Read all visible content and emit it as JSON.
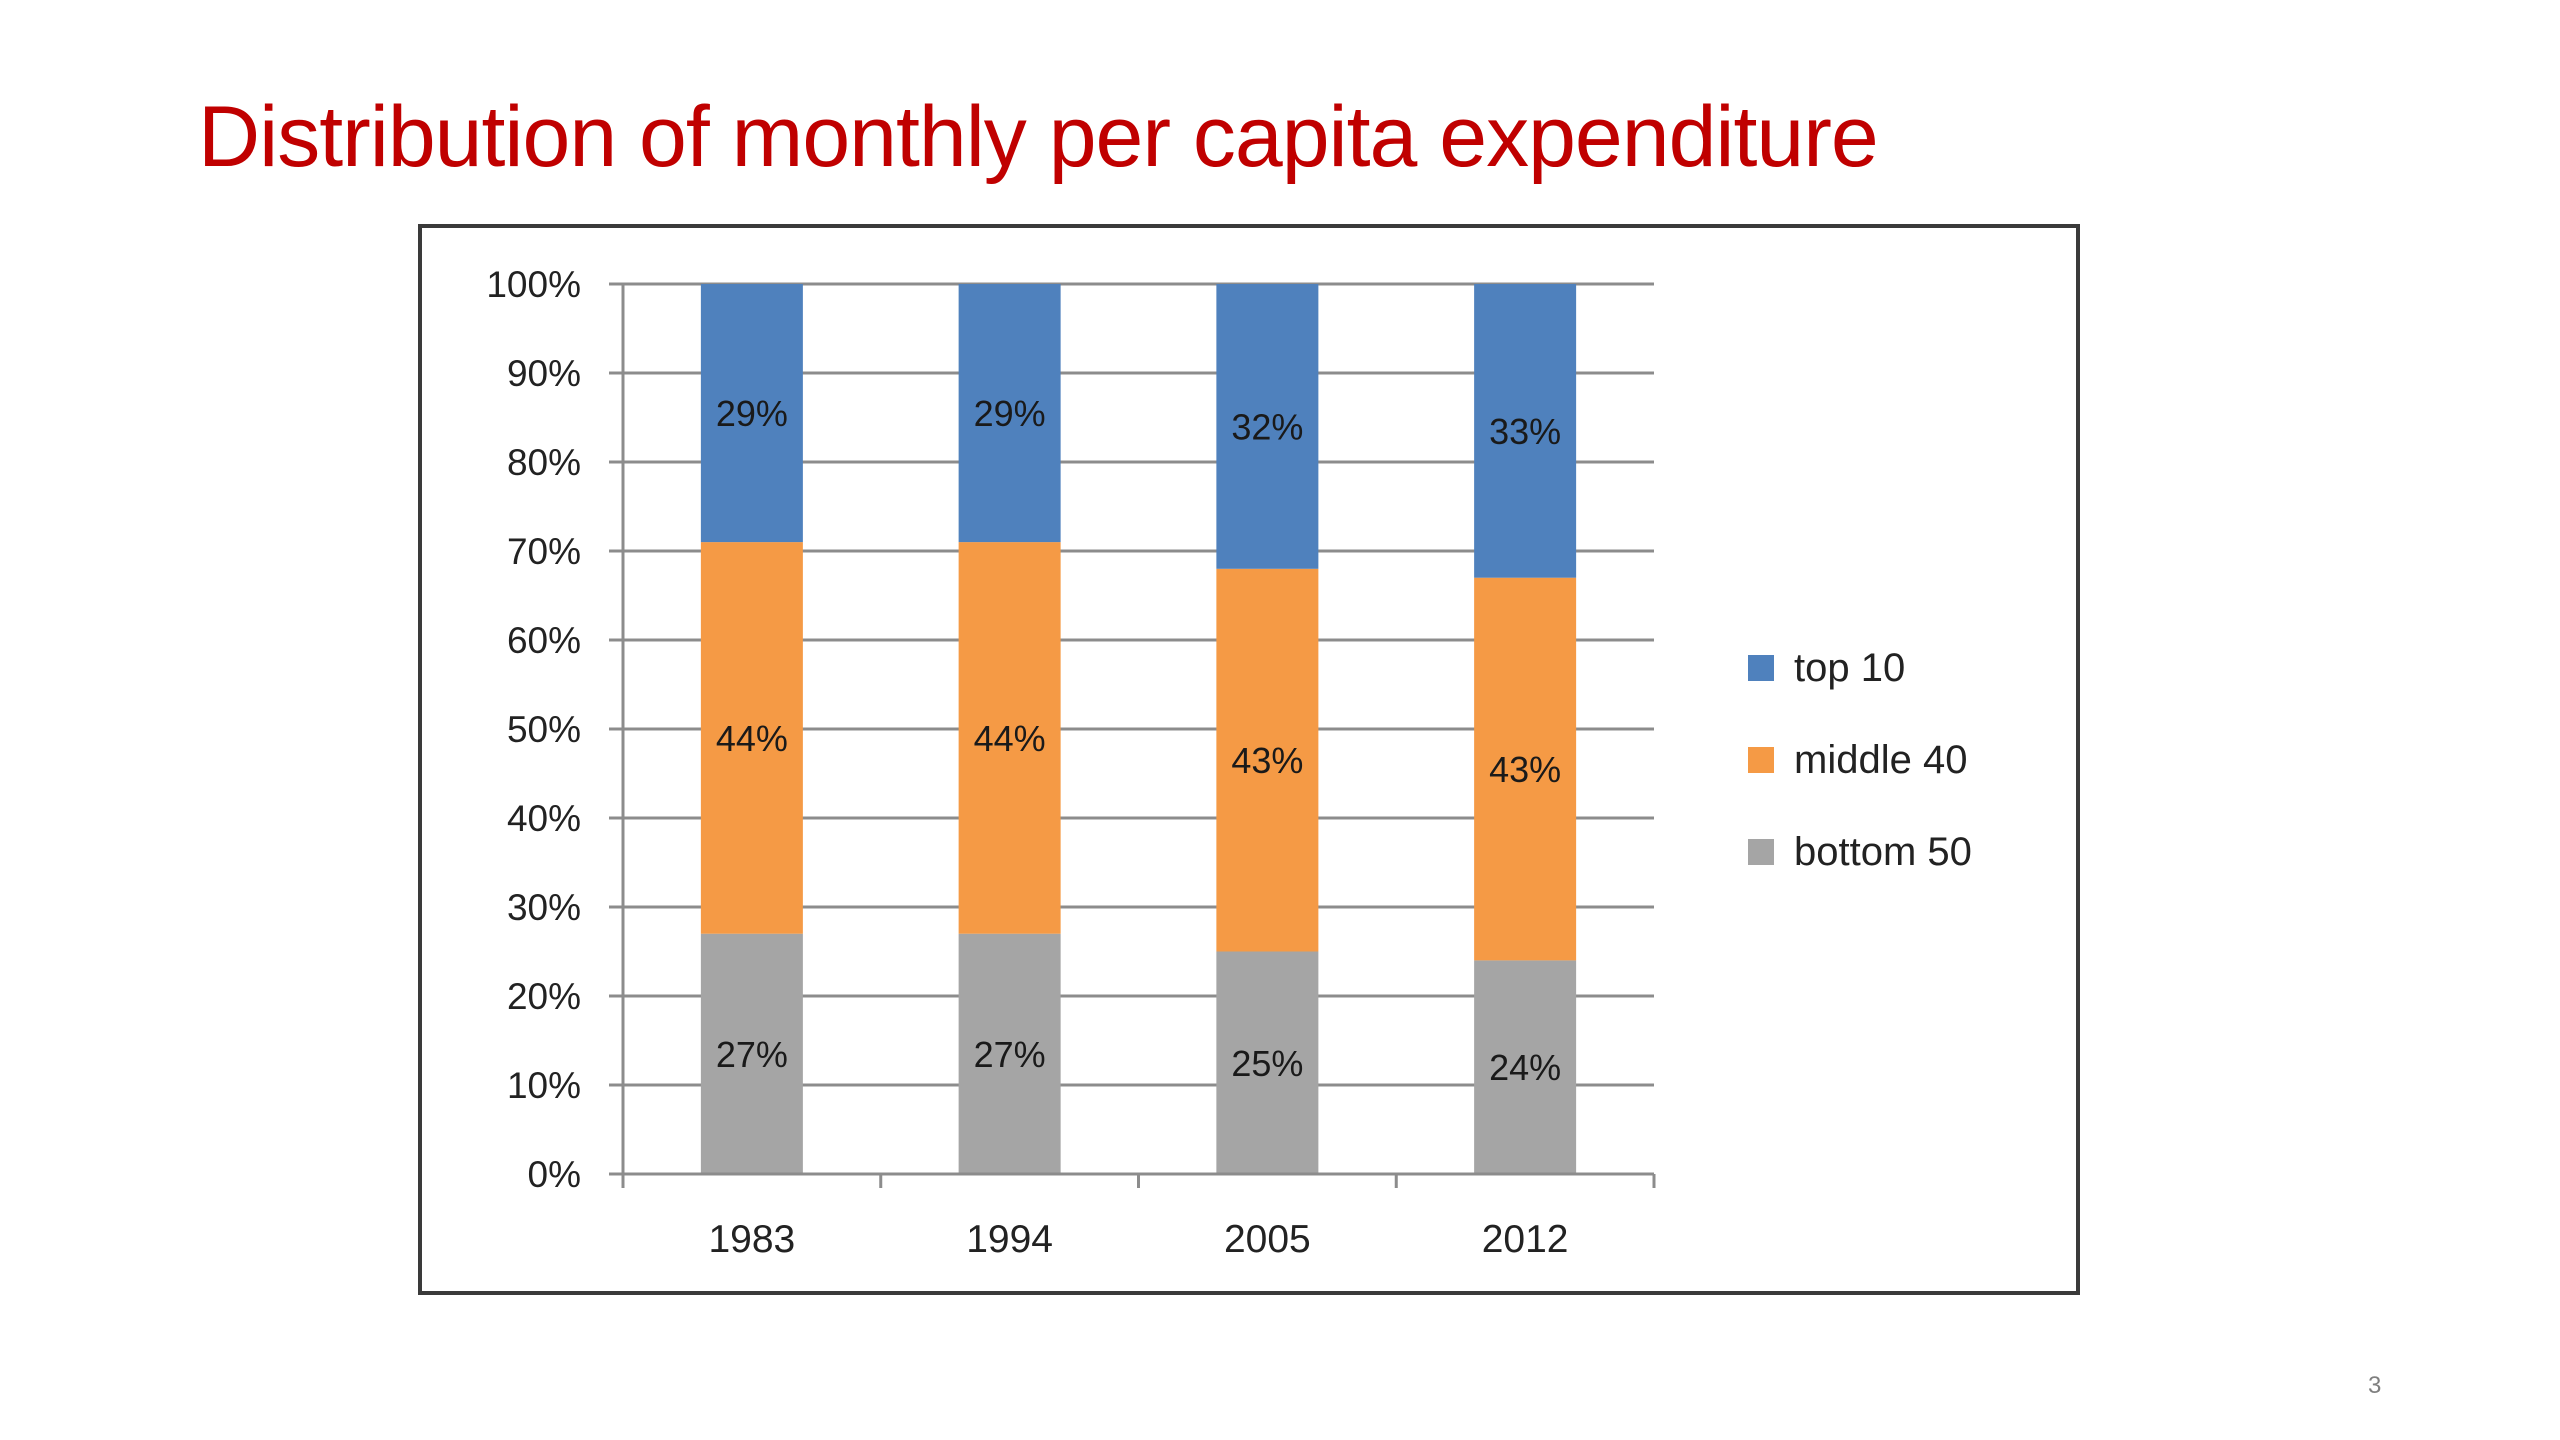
{
  "slide": {
    "title": "Distribution of monthly per capita expenditure",
    "page_number": "3"
  },
  "chart_data": {
    "type": "bar",
    "stacked": true,
    "percent_stacked": true,
    "categories": [
      "1983",
      "1994",
      "2005",
      "2012"
    ],
    "series": [
      {
        "name": "bottom 50",
        "values": [
          27,
          27,
          25,
          24
        ],
        "labels": [
          "27%",
          "27%",
          "25%",
          "24%"
        ],
        "color": "#a5a5a5"
      },
      {
        "name": "middle 40",
        "values": [
          44,
          44,
          43,
          43
        ],
        "labels": [
          "44%",
          "44%",
          "43%",
          "43%"
        ],
        "color": "#f59a45"
      },
      {
        "name": "top 10",
        "values": [
          29,
          29,
          32,
          33
        ],
        "labels": [
          "29%",
          "29%",
          "32%",
          "33%"
        ],
        "color": "#4f81bd"
      }
    ],
    "ylim": [
      0,
      100
    ],
    "yticks": [
      "0%",
      "10%",
      "20%",
      "30%",
      "40%",
      "50%",
      "60%",
      "70%",
      "80%",
      "90%",
      "100%"
    ],
    "grid": true,
    "legend": {
      "position": "right",
      "order": [
        "top 10",
        "middle 40",
        "bottom 50"
      ]
    }
  }
}
